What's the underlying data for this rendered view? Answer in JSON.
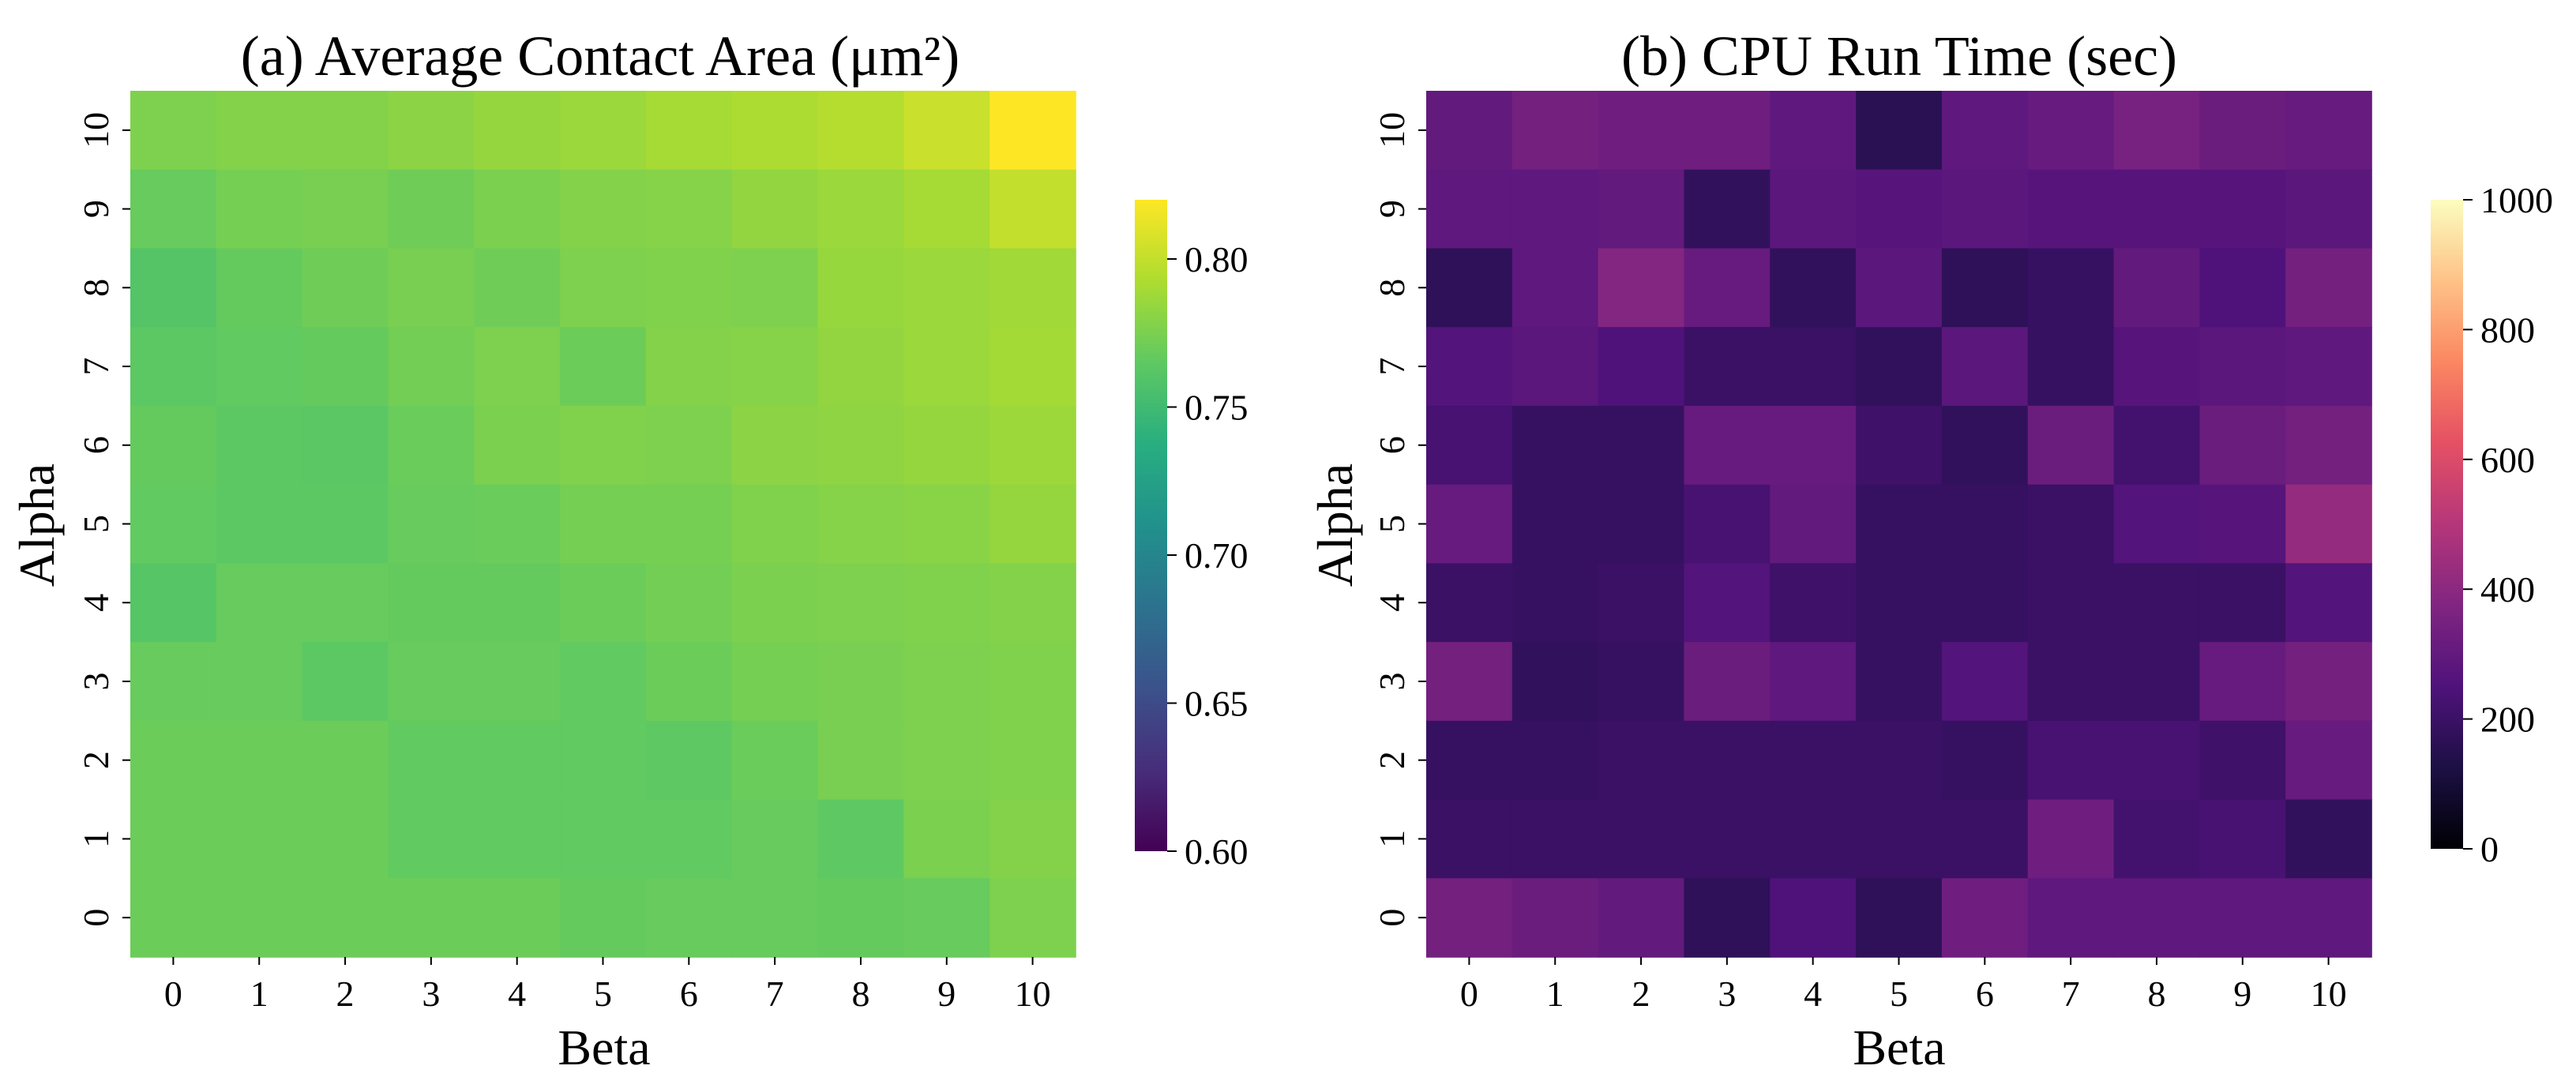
{
  "chart_data": [
    {
      "type": "heatmap",
      "title": "(a) Average Contact Area (μm²)",
      "xlabel": "Beta",
      "ylabel": "Alpha",
      "x_ticks": [
        "0",
        "1",
        "2",
        "3",
        "4",
        "5",
        "6",
        "7",
        "8",
        "9",
        "10"
      ],
      "y_ticks": [
        "10",
        "9",
        "8",
        "7",
        "6",
        "5",
        "4",
        "3",
        "2",
        "1",
        "0"
      ],
      "colormap": "viridis",
      "vmin": 0.6,
      "vmax": 0.82,
      "colorbar_ticks": [
        0.6,
        0.65,
        0.7,
        0.75,
        0.8
      ],
      "colorbar_tick_labels": [
        "0.60",
        "0.65",
        "0.70",
        "0.75",
        "0.80"
      ],
      "grid": false,
      "values_rows_alpha_10_to_0": [
        [
          0.776,
          0.778,
          0.778,
          0.781,
          0.784,
          0.786,
          0.79,
          0.792,
          0.795,
          0.802,
          0.82
        ],
        [
          0.768,
          0.773,
          0.774,
          0.771,
          0.775,
          0.778,
          0.779,
          0.783,
          0.786,
          0.79,
          0.8
        ],
        [
          0.76,
          0.767,
          0.771,
          0.774,
          0.771,
          0.776,
          0.777,
          0.776,
          0.785,
          0.786,
          0.788
        ],
        [
          0.764,
          0.766,
          0.767,
          0.772,
          0.776,
          0.77,
          0.778,
          0.779,
          0.783,
          0.786,
          0.789
        ],
        [
          0.767,
          0.764,
          0.763,
          0.769,
          0.775,
          0.777,
          0.776,
          0.781,
          0.782,
          0.784,
          0.787
        ],
        [
          0.766,
          0.764,
          0.764,
          0.768,
          0.769,
          0.773,
          0.773,
          0.777,
          0.779,
          0.78,
          0.784
        ],
        [
          0.761,
          0.768,
          0.768,
          0.767,
          0.767,
          0.77,
          0.772,
          0.775,
          0.776,
          0.777,
          0.778
        ],
        [
          0.768,
          0.768,
          0.764,
          0.768,
          0.768,
          0.766,
          0.77,
          0.773,
          0.774,
          0.776,
          0.777
        ],
        [
          0.77,
          0.77,
          0.77,
          0.766,
          0.766,
          0.766,
          0.765,
          0.769,
          0.774,
          0.776,
          0.777
        ],
        [
          0.77,
          0.77,
          0.77,
          0.766,
          0.766,
          0.766,
          0.766,
          0.768,
          0.765,
          0.775,
          0.778
        ],
        [
          0.77,
          0.77,
          0.77,
          0.77,
          0.77,
          0.767,
          0.768,
          0.768,
          0.767,
          0.768,
          0.776
        ]
      ]
    },
    {
      "type": "heatmap",
      "title": "(b) CPU Run Time (sec)",
      "xlabel": "Beta",
      "ylabel": "Alpha",
      "x_ticks": [
        "0",
        "1",
        "2",
        "3",
        "4",
        "5",
        "6",
        "7",
        "8",
        "9",
        "10"
      ],
      "y_ticks": [
        "10",
        "9",
        "8",
        "7",
        "6",
        "5",
        "4",
        "3",
        "2",
        "1",
        "0"
      ],
      "colormap": "magma",
      "vmin": 0,
      "vmax": 1000,
      "colorbar_ticks": [
        0,
        200,
        400,
        600,
        800,
        1000
      ],
      "colorbar_tick_labels": [
        "0",
        "200",
        "400",
        "600",
        "800",
        "1000"
      ],
      "grid": false,
      "values_rows_alpha_10_to_0": [
        [
          300,
          340,
          330,
          330,
          290,
          160,
          290,
          310,
          350,
          320,
          310
        ],
        [
          290,
          290,
          300,
          180,
          280,
          270,
          280,
          270,
          270,
          270,
          280
        ],
        [
          170,
          290,
          380,
          310,
          180,
          280,
          170,
          190,
          300,
          250,
          340
        ],
        [
          260,
          280,
          250,
          200,
          200,
          180,
          280,
          190,
          270,
          280,
          290
        ],
        [
          230,
          190,
          190,
          310,
          310,
          210,
          180,
          320,
          220,
          320,
          340
        ],
        [
          310,
          190,
          190,
          230,
          300,
          190,
          190,
          200,
          260,
          270,
          420
        ],
        [
          200,
          190,
          200,
          260,
          210,
          190,
          190,
          200,
          200,
          200,
          260
        ],
        [
          340,
          180,
          190,
          320,
          290,
          190,
          260,
          200,
          200,
          310,
          340
        ],
        [
          190,
          190,
          200,
          200,
          200,
          200,
          190,
          230,
          230,
          210,
          310
        ],
        [
          200,
          200,
          200,
          200,
          200,
          200,
          200,
          330,
          220,
          230,
          180
        ],
        [
          340,
          320,
          300,
          170,
          250,
          170,
          330,
          290,
          290,
          290,
          290
        ]
      ]
    }
  ]
}
